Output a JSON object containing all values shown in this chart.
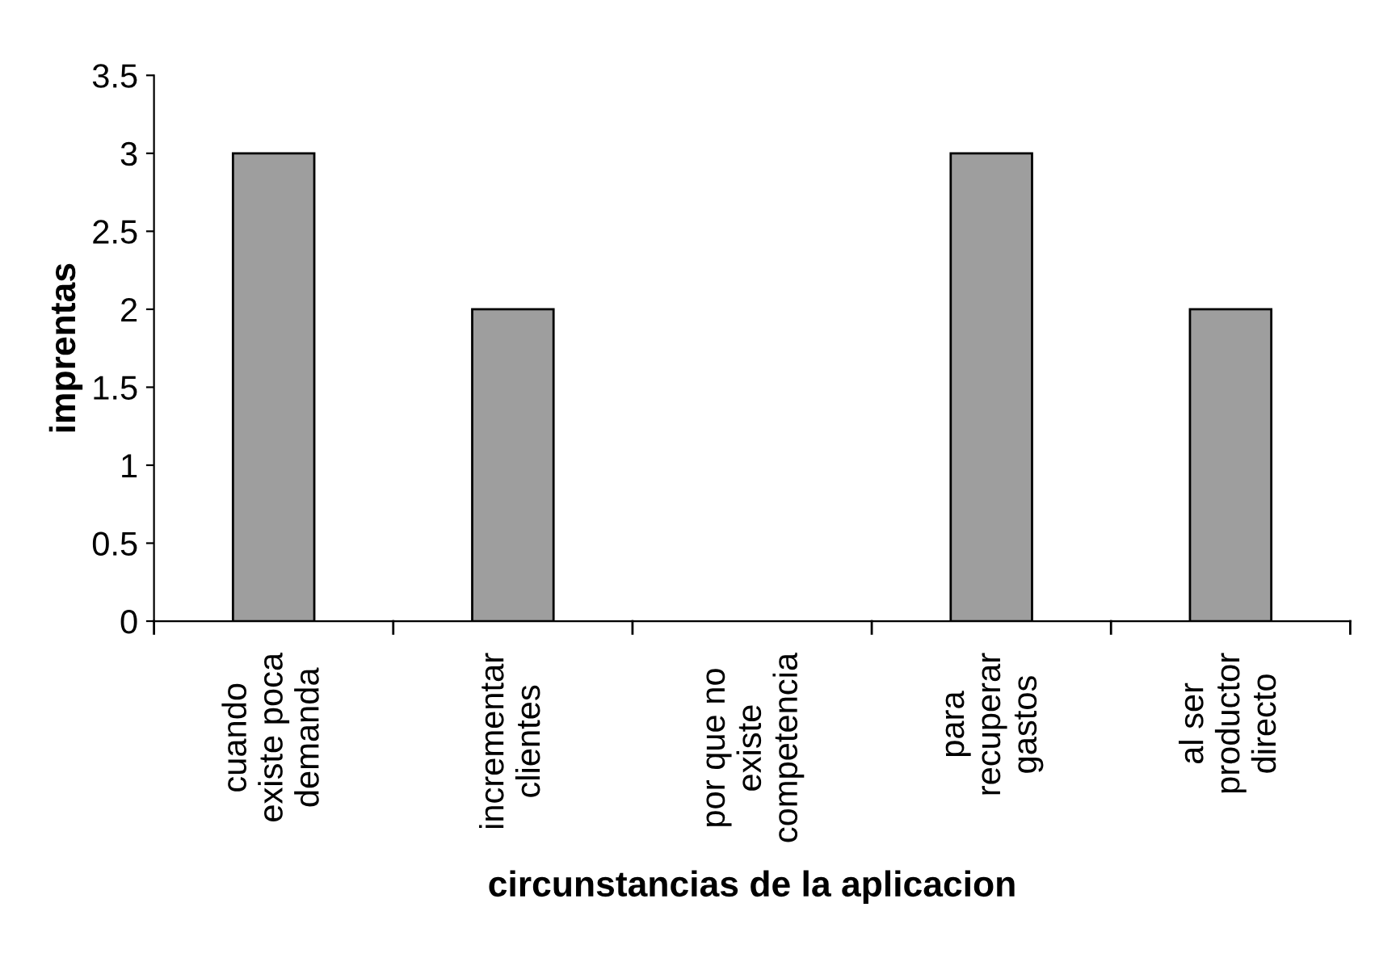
{
  "chart_data": {
    "type": "bar",
    "xlabel": "circunstancias de la aplicacion",
    "ylabel": "imprentas",
    "categories": [
      "cuando\nexiste poca\ndemanda",
      "incrementar\nclientes",
      "por que no\nexiste\ncompetencia",
      "para\nrecuperar\ngastos",
      "al ser\nproductor\ndirecto"
    ],
    "values": [
      3,
      2,
      0,
      3,
      2
    ],
    "color": "#9e9e9e",
    "ylim": [
      0,
      3.5
    ],
    "yticks": [
      0,
      0.5,
      1,
      1.5,
      2,
      2.5,
      3,
      3.5
    ],
    "grid": false,
    "legend": false
  }
}
